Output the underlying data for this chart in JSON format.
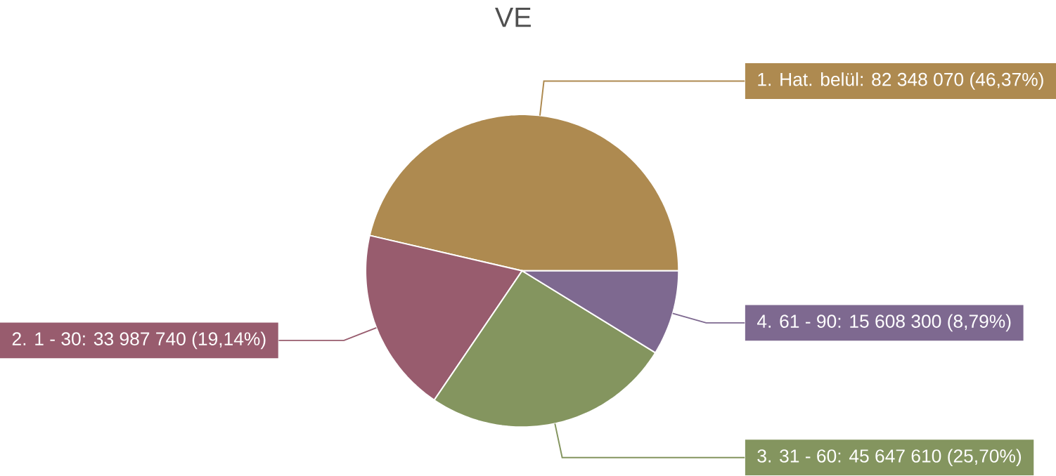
{
  "chart_data": {
    "type": "pie",
    "title": "VE",
    "categories": [
      "1. Hat. belül",
      "2. 1 - 30",
      "3. 31 - 60",
      "4. 61 - 90"
    ],
    "values": [
      82348070,
      33987740,
      45647610,
      15608300
    ],
    "value_labels": [
      ": 82 348 070 (46,37%)",
      ": 33 987 740 (19,14%)",
      ": 45 647 610 (25,70%)",
      ": 15 608 300 (8,79%)"
    ],
    "colors": [
      "#ae8a50",
      "#985c6e",
      "#84955f",
      "#7e6990"
    ]
  }
}
